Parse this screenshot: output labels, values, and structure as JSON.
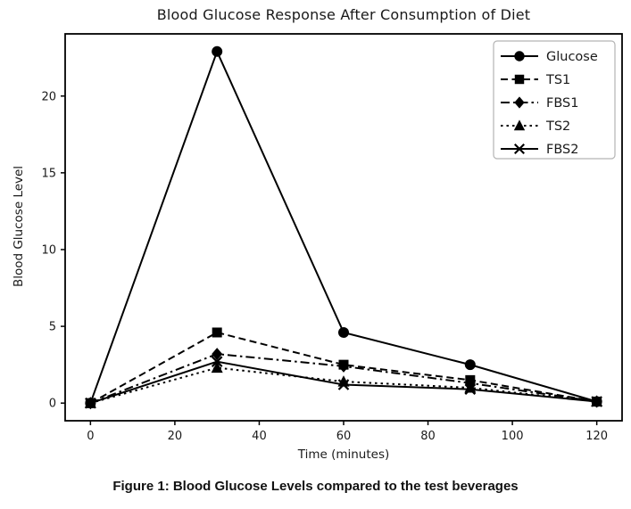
{
  "caption": "Figure 1: Blood Glucose Levels compared to the test beverages",
  "chart_data": {
    "type": "line",
    "title": "Blood Glucose Response After Consumption of Diet",
    "xlabel": "Time (minutes)",
    "ylabel": "Blood Glucose Level",
    "x": [
      0,
      30,
      60,
      90,
      120
    ],
    "series": [
      {
        "name": "Glucose",
        "values": [
          0,
          22.9,
          4.6,
          2.5,
          0.1
        ],
        "linestyle": "solid",
        "marker": "circle"
      },
      {
        "name": "TS1",
        "values": [
          0,
          4.6,
          2.5,
          1.5,
          0.1
        ],
        "linestyle": "dashed",
        "marker": "square"
      },
      {
        "name": "FBS1",
        "values": [
          0,
          3.2,
          2.4,
          1.3,
          0.1
        ],
        "linestyle": "dashdot",
        "marker": "diamond"
      },
      {
        "name": "TS2",
        "values": [
          0,
          2.3,
          1.4,
          1.0,
          0.1
        ],
        "linestyle": "dotted",
        "marker": "triangle"
      },
      {
        "name": "FBS2",
        "values": [
          0,
          2.7,
          1.2,
          0.9,
          0.1
        ],
        "linestyle": "solid",
        "marker": "x"
      }
    ],
    "xticks": [
      0,
      20,
      40,
      60,
      80,
      100,
      120
    ],
    "yticks": [
      0,
      5,
      10,
      15,
      20
    ],
    "xlim": [
      -6,
      126
    ],
    "ylim": [
      -1.15,
      24.05
    ],
    "grid": false,
    "legend_position": "upper right",
    "color": "#000000"
  }
}
